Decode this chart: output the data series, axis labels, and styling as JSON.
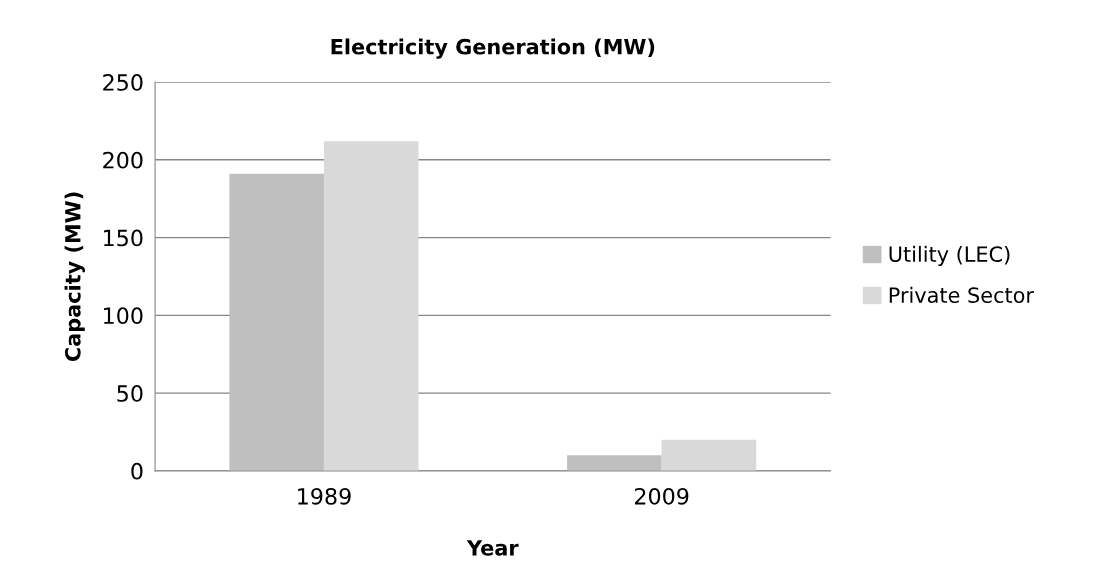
{
  "chart_data": {
    "type": "bar",
    "title": "Electricity Generation (MW)",
    "xlabel": "Year",
    "ylabel": "Capacity (MW)",
    "categories": [
      "1989",
      "2009"
    ],
    "series": [
      {
        "name": "Utility (LEC)",
        "color": "#bfbfbf",
        "values": [
          191,
          10
        ]
      },
      {
        "name": "Private Sector",
        "color": "#d9d9d9",
        "values": [
          212,
          20
        ]
      }
    ],
    "ylim": [
      0,
      250
    ],
    "yticks": [
      0,
      50,
      100,
      150,
      200,
      250
    ],
    "grid": "y",
    "legend": "right"
  }
}
